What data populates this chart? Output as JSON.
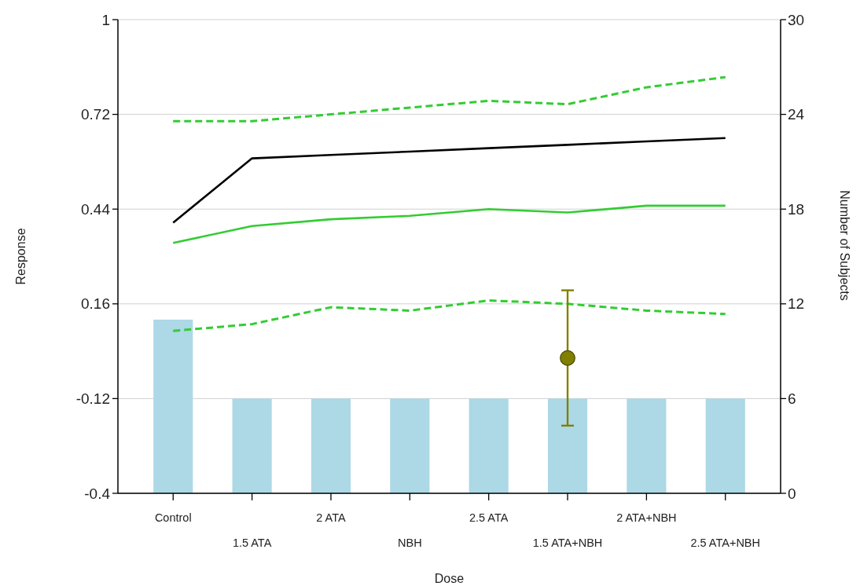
{
  "chart_data": {
    "type": "line",
    "xlabel": "Dose",
    "ylabel": "Response",
    "y2label": "Number of Subjects",
    "categories": [
      "Control",
      "1.5 ATA",
      "2 ATA",
      "NBH",
      "2.5 ATA",
      "1.5 ATA+NBH",
      "2 ATA+NBH",
      "2.5 ATA+NBH"
    ],
    "series": [
      {
        "type": "bar",
        "axis": "y2",
        "color": "#add8e6",
        "values": [
          11,
          6,
          6,
          6,
          6,
          6,
          6,
          6
        ]
      },
      {
        "color": "#000000",
        "values": [
          0.4,
          0.59,
          0.6,
          0.61,
          0.62,
          0.63,
          0.64,
          0.65
        ]
      },
      {
        "color": "#33cc33",
        "values": [
          0.34,
          0.39,
          0.41,
          0.42,
          0.44,
          0.43,
          0.45,
          0.45
        ]
      },
      {
        "color": "#33cc33",
        "line_style": "dashed",
        "values": [
          0.7,
          0.7,
          0.72,
          0.74,
          0.76,
          0.75,
          0.8,
          0.83
        ]
      },
      {
        "color": "#33cc33",
        "line_style": "dashed",
        "values": [
          0.08,
          0.1,
          0.15,
          0.14,
          0.17,
          0.16,
          0.14,
          0.13
        ]
      },
      {
        "type": "scatter",
        "color": "#808000",
        "marker": "circle",
        "x": [
          "1.5 ATA+NBH"
        ],
        "values": [
          0.0
        ],
        "errors": [
          0.2
        ]
      }
    ],
    "ylim": [
      -0.4,
      1
    ],
    "yticks": [
      -0.4,
      -0.12,
      0.16,
      0.44,
      0.72,
      1
    ],
    "y2lim": [
      0,
      30
    ],
    "y2ticks": [
      0,
      6,
      12,
      18,
      24,
      30
    ],
    "grid": "y"
  }
}
